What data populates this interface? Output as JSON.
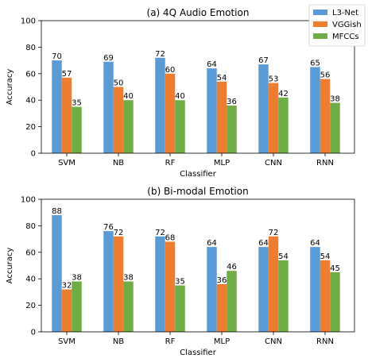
{
  "legend": {
    "entries": [
      {
        "label": "L3-Net",
        "color": "#5b9bd5"
      },
      {
        "label": "VGGish",
        "color": "#ed7d31"
      },
      {
        "label": "MFCCs",
        "color": "#70ad47"
      }
    ],
    "placement": "top-right"
  },
  "chart_data": [
    {
      "type": "bar",
      "title": "(a) 4Q Audio Emotion",
      "xlabel": "Classifier",
      "ylabel": "Accuracy",
      "ylim": [
        0,
        100
      ],
      "yticks": [
        "0",
        "20",
        "40",
        "60",
        "80",
        "100"
      ],
      "categories": [
        "SVM",
        "NB",
        "RF",
        "MLP",
        "CNN",
        "RNN"
      ],
      "grid": false,
      "series": [
        {
          "name": "L3-Net",
          "color": "#5b9bd5",
          "values": [
            70,
            69,
            72,
            64,
            67,
            65
          ]
        },
        {
          "name": "VGGish",
          "color": "#ed7d31",
          "values": [
            57,
            50,
            60,
            54,
            53,
            56
          ]
        },
        {
          "name": "MFCCs",
          "color": "#70ad47",
          "values": [
            35,
            40,
            40,
            36,
            42,
            38
          ]
        }
      ]
    },
    {
      "type": "bar",
      "title": "(b) Bi-modal Emotion",
      "xlabel": "Classifier",
      "ylabel": "Accuracy",
      "ylim": [
        0,
        100
      ],
      "yticks": [
        "0",
        "20",
        "40",
        "60",
        "80",
        "100"
      ],
      "categories": [
        "SVM",
        "NB",
        "RF",
        "MLP",
        "CNN",
        "RNN"
      ],
      "grid": false,
      "series": [
        {
          "name": "L3-Net",
          "color": "#5b9bd5",
          "values": [
            88,
            76,
            72,
            64,
            64,
            64
          ]
        },
        {
          "name": "VGGish",
          "color": "#ed7d31",
          "values": [
            32,
            72,
            68,
            36,
            72,
            54
          ]
        },
        {
          "name": "MFCCs",
          "color": "#70ad47",
          "values": [
            38,
            38,
            35,
            46,
            54,
            45
          ]
        }
      ]
    }
  ]
}
